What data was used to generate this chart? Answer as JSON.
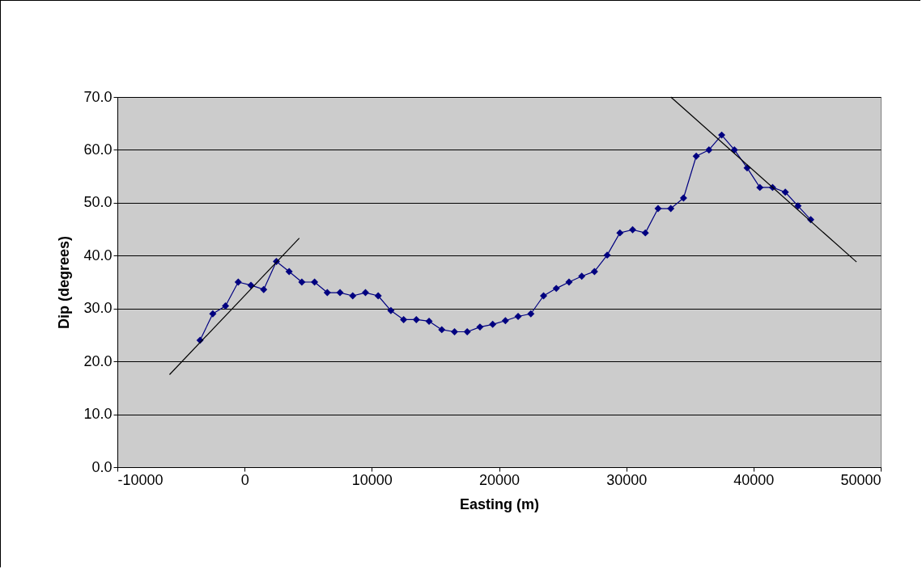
{
  "chart_data": {
    "type": "line",
    "xlabel": "Easting (m)",
    "ylabel": "Dip (degrees)",
    "xlim": [
      -10000,
      50000
    ],
    "xticks": [
      -10000,
      0,
      10000,
      20000,
      30000,
      40000,
      50000
    ],
    "ylim": [
      0,
      70
    ],
    "yticks": [
      {
        "value": 0,
        "label": "0.0"
      },
      {
        "value": 10,
        "label": "10.0"
      },
      {
        "value": 20,
        "label": "20.0"
      },
      {
        "value": 30,
        "label": "30.0"
      },
      {
        "value": 40,
        "label": "40.0"
      },
      {
        "value": 50,
        "label": "50.0"
      },
      {
        "value": 60,
        "label": "60.0"
      },
      {
        "value": 70,
        "label": "70.0"
      }
    ],
    "grid": "y",
    "series": [
      {
        "color": "#000080",
        "marker": "diamond",
        "x": [
          -3500,
          -2500,
          -1500,
          -500,
          500,
          1500,
          2500,
          3500,
          4500,
          5500,
          6500,
          7500,
          8500,
          9500,
          10500,
          11500,
          12500,
          13500,
          14500,
          15500,
          16500,
          17500,
          18500,
          19500,
          20500,
          21500,
          22500,
          23500,
          24500,
          25500,
          26500,
          27500,
          28500,
          29500,
          30500,
          31500,
          32500,
          33500,
          34500,
          35500,
          36500,
          37500,
          38500,
          39500,
          40500,
          41500,
          42500,
          43500,
          44500
        ],
        "values": [
          24.0,
          29.0,
          30.5,
          35.0,
          34.4,
          33.6,
          38.9,
          37.0,
          35.0,
          35.0,
          33.0,
          33.0,
          32.4,
          33.0,
          32.4,
          29.6,
          27.9,
          27.9,
          27.6,
          26.0,
          25.6,
          25.6,
          26.5,
          27.0,
          27.7,
          28.5,
          29.0,
          32.4,
          33.8,
          35.0,
          36.1,
          37.0,
          40.1,
          44.3,
          44.9,
          44.3,
          48.9,
          48.9,
          50.9,
          58.8,
          60.0,
          62.8,
          60.0,
          56.6,
          52.9,
          52.9,
          52.0,
          49.4,
          46.8
        ]
      },
      {
        "color": "#000000",
        "marker": "none",
        "x": [
          -5900,
          4300
        ],
        "values": [
          17.5,
          43.3
        ]
      },
      {
        "color": "#000000",
        "marker": "none",
        "x": [
          33500,
          48100
        ],
        "values": [
          70.0,
          38.8
        ]
      }
    ]
  }
}
